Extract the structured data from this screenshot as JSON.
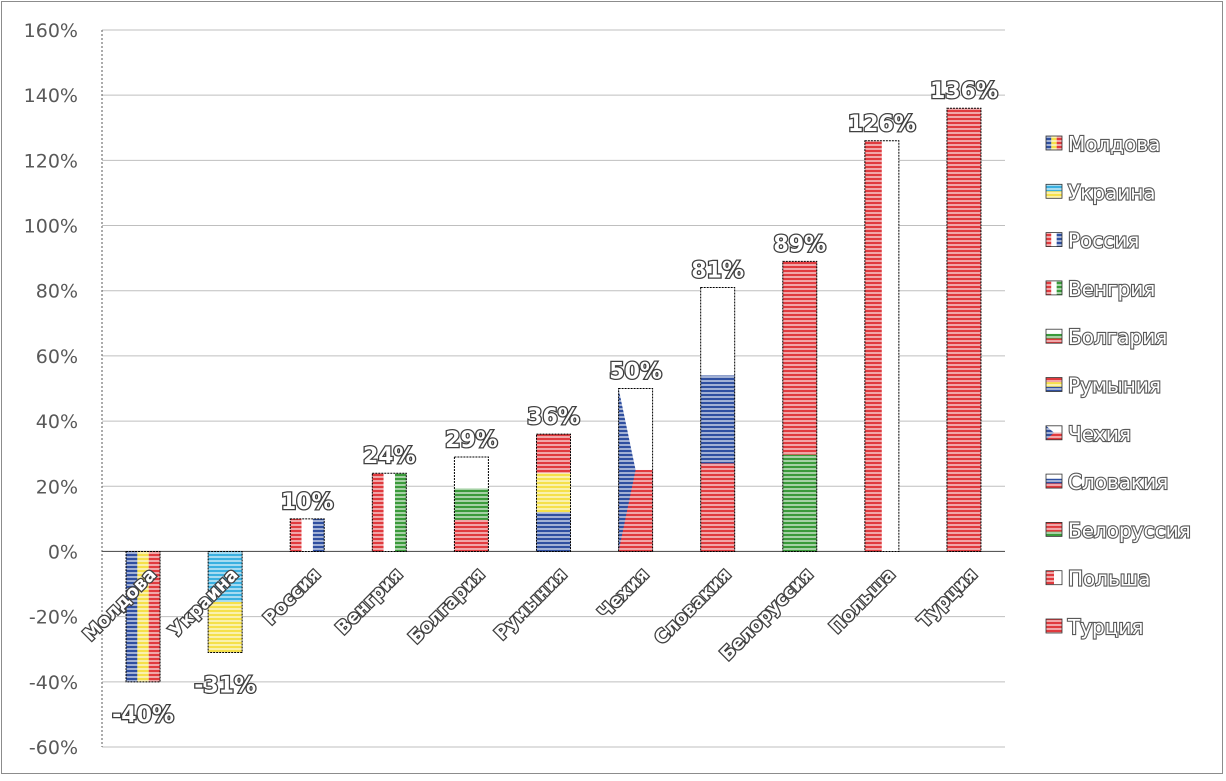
{
  "chart_data": {
    "type": "bar",
    "title": "",
    "xlabel": "",
    "ylabel": "",
    "ylim": [
      -60,
      160
    ],
    "y_ticks": [
      160,
      140,
      120,
      100,
      80,
      60,
      40,
      20,
      0,
      -20,
      -40,
      -60
    ],
    "y_tick_labels": [
      "160%",
      "140%",
      "120%",
      "100%",
      "80%",
      "60%",
      "40%",
      "20%",
      "0%",
      "-20%",
      "-40%",
      "-60%"
    ],
    "grid": true,
    "legend_position": "right",
    "categories": [
      "Молдова",
      "Украина",
      "Россия",
      "Венгрия",
      "Болгария",
      "Румыния",
      "Чехия",
      "Словакия",
      "Белоруссия",
      "Польша",
      "Турция"
    ],
    "values": [
      -40,
      -31,
      10,
      24,
      29,
      36,
      50,
      81,
      89,
      126,
      136
    ],
    "data_labels": [
      "-40%",
      "-31%",
      "10%",
      "24%",
      "29%",
      "36%",
      "50%",
      "81%",
      "89%",
      "126%",
      "136%"
    ],
    "legend": [
      "Молдова",
      "Украина",
      "Россия",
      "Венгрия",
      "Болгария",
      "Румыния",
      "Чехия",
      "Словакия",
      "Белоруссия",
      "Польша",
      "Турция"
    ],
    "colors": {
      "blue": "#2f4fa0",
      "red": "#e03a3e",
      "yellow": "#f5e04a",
      "green": "#3a9a3a",
      "white": "#ffffff",
      "sky": "#3ab0e0",
      "axis": "#595959",
      "grid": "#bfbfbf"
    }
  }
}
